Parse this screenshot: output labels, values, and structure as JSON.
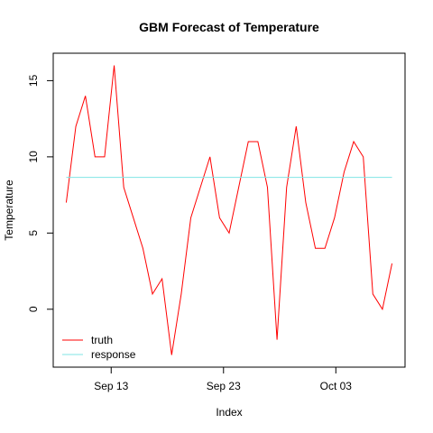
{
  "chart_data": {
    "type": "line",
    "title": "GBM Forecast of Temperature",
    "xlabel": "Index",
    "ylabel": "Temperature",
    "x_start": "Sep 09",
    "x_end": "Oct 08",
    "x_ticks": [
      {
        "label": "Sep 13",
        "date": "Sep 13"
      },
      {
        "label": "Sep 23",
        "date": "Sep 23"
      },
      {
        "label": "Oct 03",
        "date": "Oct 03"
      }
    ],
    "y_ticks": [
      0,
      5,
      10,
      15
    ],
    "ylim": [
      -3.8,
      16.8
    ],
    "grid": false,
    "legend_position": "bottom-left",
    "series": [
      {
        "name": "truth",
        "color": "#ff0000",
        "values": [
          7,
          12,
          14,
          10,
          10,
          16,
          8,
          6,
          4,
          1,
          2,
          -3,
          1,
          6,
          8,
          10,
          6,
          5,
          8,
          11,
          11,
          8,
          -2,
          8,
          12,
          7,
          4,
          4,
          6,
          9,
          11,
          10,
          1,
          0,
          3
        ]
      },
      {
        "name": "response",
        "color": "#7fe5e5",
        "values": [
          8.65,
          8.65,
          8.65,
          8.65,
          8.65,
          8.65,
          8.65,
          8.65,
          8.65,
          8.65,
          8.65,
          8.65,
          8.65,
          8.65,
          8.65,
          8.65,
          8.65,
          8.65,
          8.65,
          8.65,
          8.65,
          8.65,
          8.65,
          8.65,
          8.65,
          8.65,
          8.65,
          8.65,
          8.65,
          8.65,
          8.65,
          8.65,
          8.65,
          8.65,
          8.65
        ]
      }
    ]
  }
}
